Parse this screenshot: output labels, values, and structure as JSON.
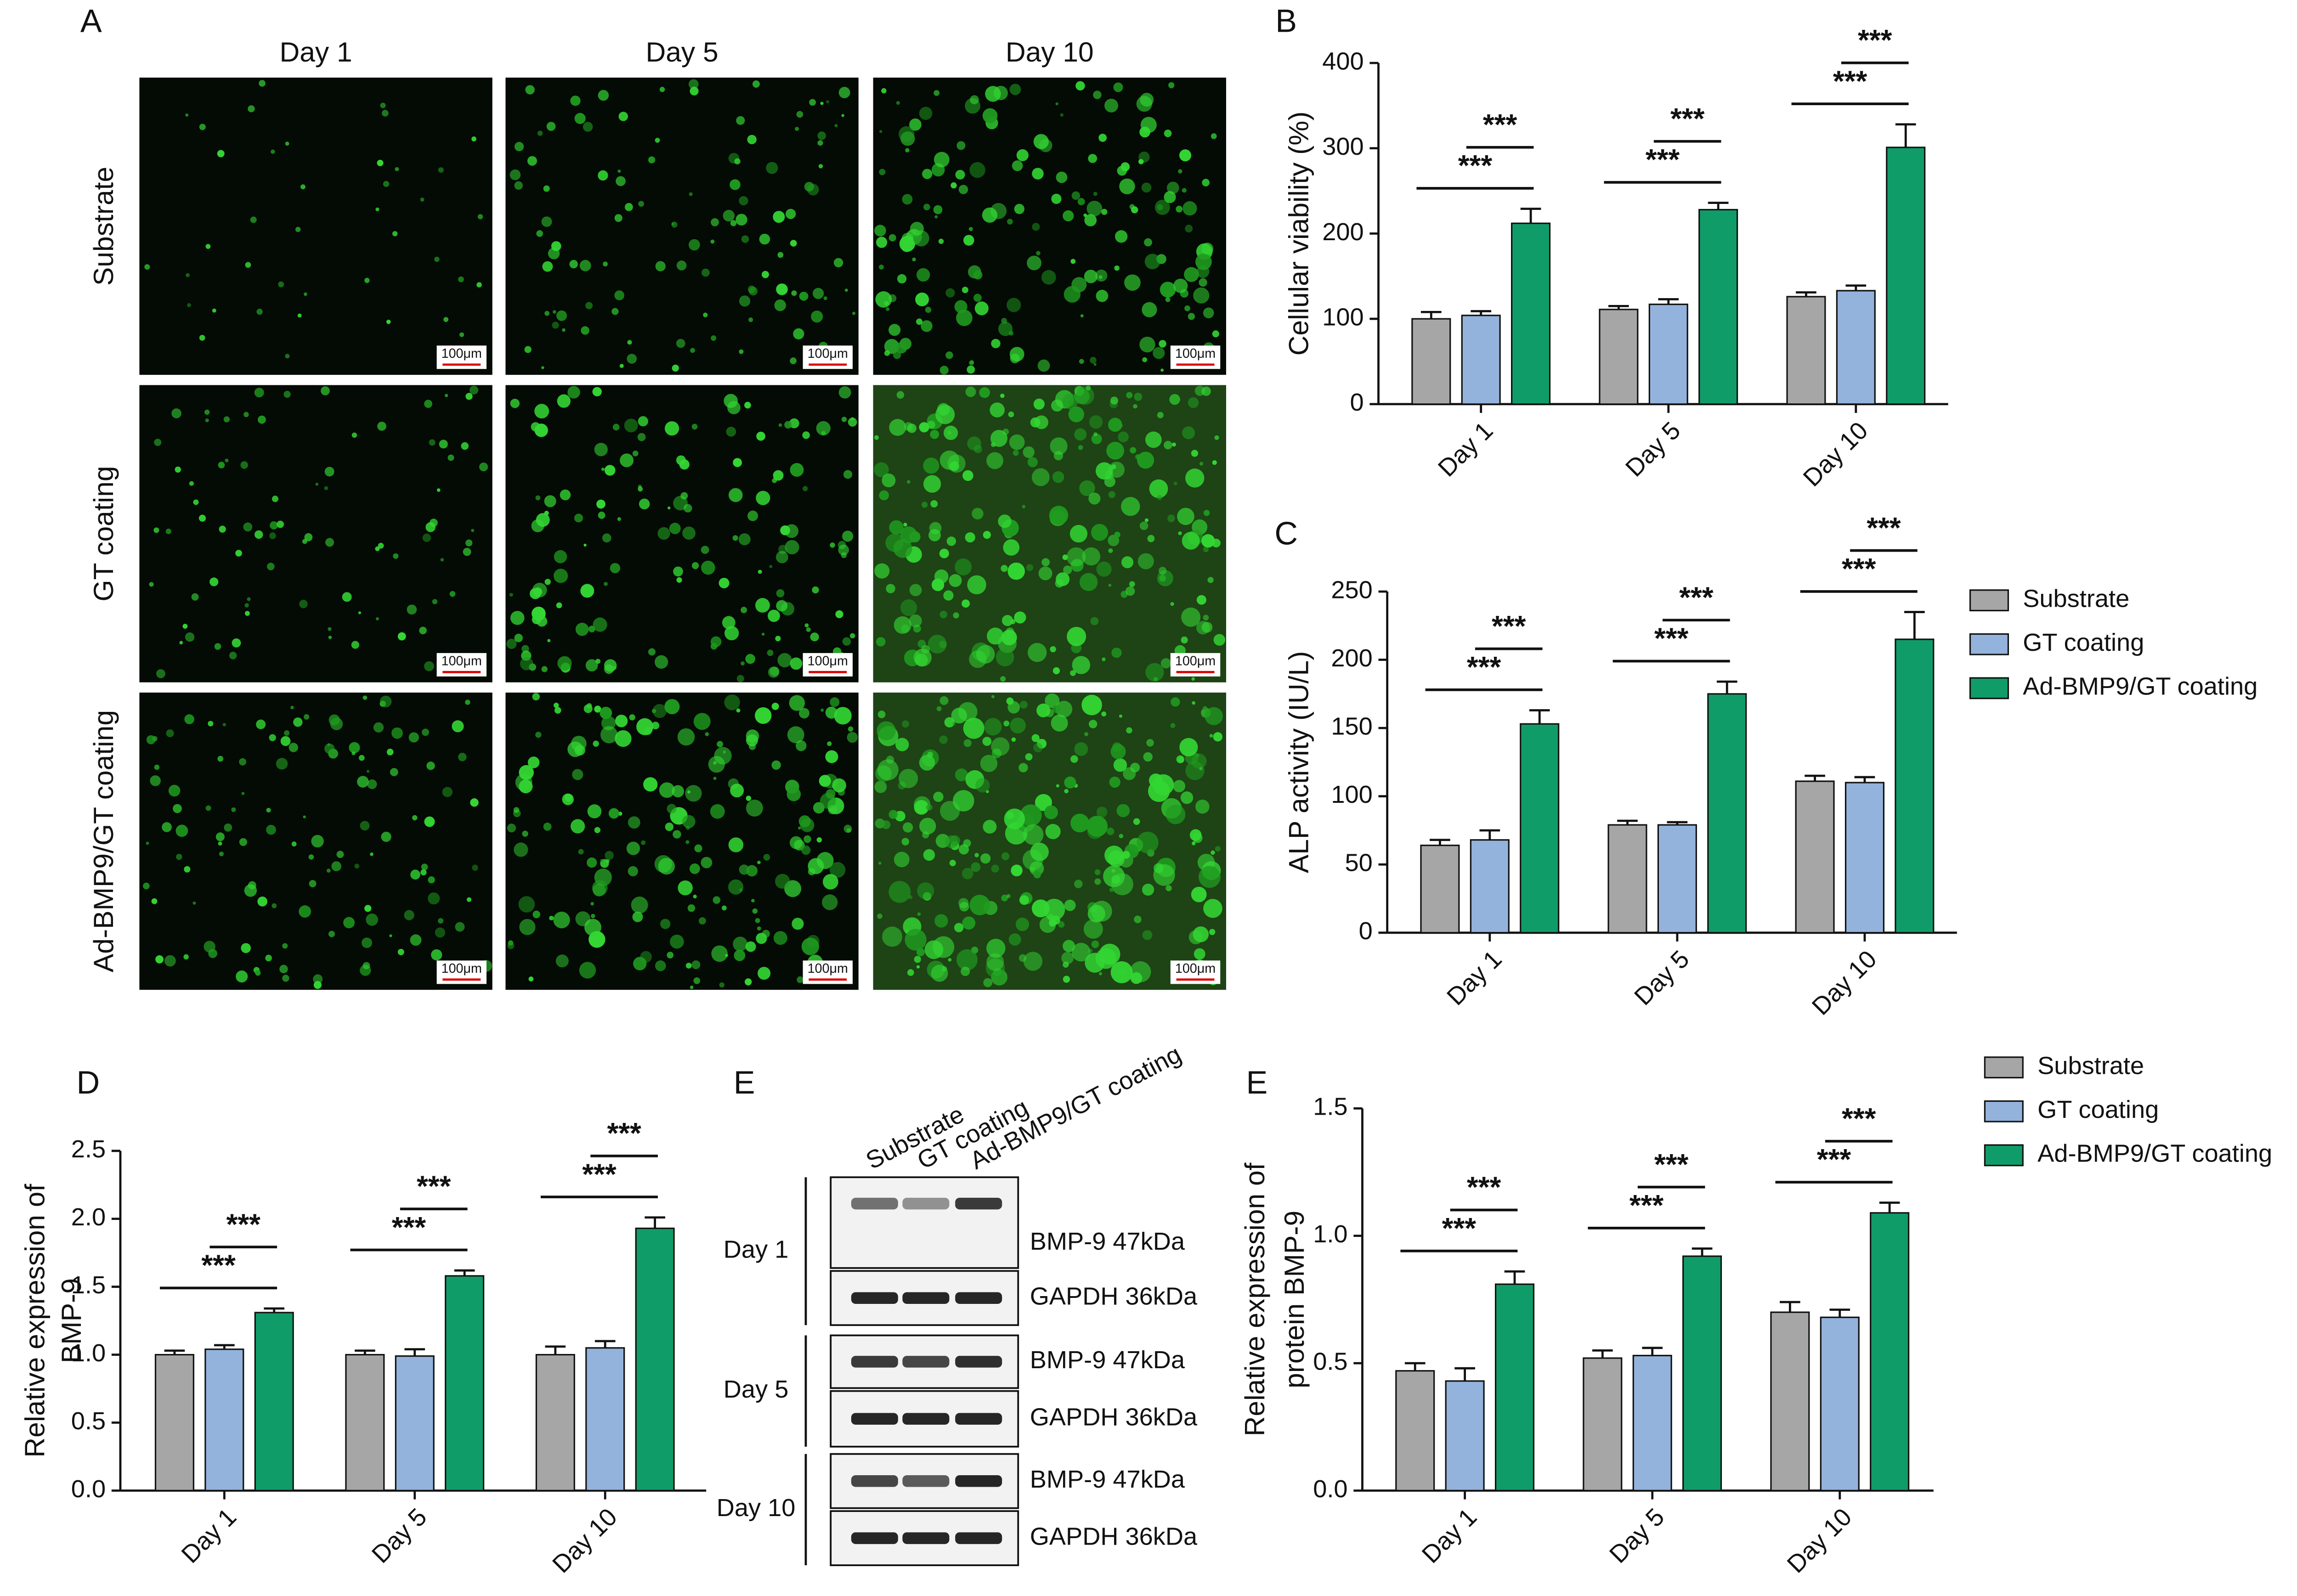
{
  "micrographs": {
    "panel": "A",
    "columns": [
      "Day 1",
      "Day 5",
      "Day 10"
    ],
    "rows": [
      "Substrate",
      "GT coating",
      "Ad-BMP9/GT coating"
    ],
    "scale_bar": "100μm"
  },
  "western_blot": {
    "panel": "E",
    "lanes": [
      "Substrate",
      "GT coating",
      "Ad-BMP9/GT coating"
    ],
    "groups": [
      "Day 1",
      "Day 5",
      "Day 10"
    ],
    "bands": [
      "BMP-9 47kDa",
      "GAPDH 36kDa"
    ]
  },
  "chart_data": [
    {
      "type": "bar",
      "panel": "B",
      "y_label": [
        "Cellular viability (%)"
      ],
      "categories": [
        "Day 1",
        "Day 5",
        "Day 10"
      ],
      "series": [
        {
          "name": "Substrate",
          "color": "#a6a6a6",
          "values": [
            100,
            111,
            126
          ],
          "errors": [
            8,
            4,
            5
          ]
        },
        {
          "name": "GT coating",
          "color": "#93b3dc",
          "values": [
            104,
            117,
            133
          ],
          "errors": [
            5,
            6,
            6
          ]
        },
        {
          "name": "Ad-BMP9/GT coating",
          "color": "#109c68",
          "values": [
            212,
            228,
            301
          ],
          "errors": [
            17,
            8,
            27
          ]
        }
      ],
      "ylim": [
        0,
        400
      ],
      "yticks": [
        0,
        100,
        200,
        300,
        400
      ],
      "annotations": [
        {
          "text": "***",
          "category": 0,
          "from": 0,
          "to": 2
        },
        {
          "text": "***",
          "category": 0,
          "from": 1,
          "to": 2
        },
        {
          "text": "***",
          "category": 1,
          "from": 0,
          "to": 2
        },
        {
          "text": "***",
          "category": 1,
          "from": 1,
          "to": 2
        },
        {
          "text": "***",
          "category": 2,
          "from": 0,
          "to": 2
        },
        {
          "text": "***",
          "category": 2,
          "from": 1,
          "to": 2
        }
      ]
    },
    {
      "type": "bar",
      "panel": "C",
      "y_label": [
        "ALP activity (IU/L)"
      ],
      "categories": [
        "Day 1",
        "Day 5",
        "Day 10"
      ],
      "legend": "right",
      "series": [
        {
          "name": "Substrate",
          "color": "#a6a6a6",
          "values": [
            64,
            79,
            111
          ],
          "errors": [
            4,
            3,
            4
          ]
        },
        {
          "name": "GT coating",
          "color": "#93b3dc",
          "values": [
            68,
            79,
            110
          ],
          "errors": [
            7,
            2,
            4
          ]
        },
        {
          "name": "Ad-BMP9/GT coating",
          "color": "#109c68",
          "values": [
            153,
            175,
            215
          ],
          "errors": [
            10,
            9,
            20
          ]
        }
      ],
      "ylim": [
        0,
        250
      ],
      "yticks": [
        0,
        50,
        100,
        150,
        200,
        250
      ],
      "annotations": [
        {
          "text": "***",
          "category": 0,
          "from": 0,
          "to": 2
        },
        {
          "text": "***",
          "category": 0,
          "from": 1,
          "to": 2
        },
        {
          "text": "***",
          "category": 1,
          "from": 0,
          "to": 2
        },
        {
          "text": "***",
          "category": 1,
          "from": 1,
          "to": 2
        },
        {
          "text": "***",
          "category": 2,
          "from": 0,
          "to": 2
        },
        {
          "text": "***",
          "category": 2,
          "from": 1,
          "to": 2
        }
      ]
    },
    {
      "type": "bar",
      "panel": "D",
      "y_label": [
        "Relative expression of",
        "BMP-9"
      ],
      "categories": [
        "Day 1",
        "Day 5",
        "Day 10"
      ],
      "series": [
        {
          "name": "Substrate",
          "color": "#a6a6a6",
          "values": [
            1.0,
            1.0,
            1.0
          ],
          "errors": [
            0.03,
            0.03,
            0.06
          ]
        },
        {
          "name": "GT coating",
          "color": "#93b3dc",
          "values": [
            1.04,
            0.99,
            1.05
          ],
          "errors": [
            0.03,
            0.05,
            0.05
          ]
        },
        {
          "name": "Ad-BMP9/GT coating",
          "color": "#109c68",
          "values": [
            1.31,
            1.58,
            1.93
          ],
          "errors": [
            0.03,
            0.04,
            0.08
          ]
        }
      ],
      "ylim": [
        0,
        2.5
      ],
      "yticks": [
        {
          "value": 0,
          "label": "0.0"
        },
        0.5,
        {
          "value": 1,
          "label": "1.0"
        },
        1.5,
        {
          "value": 2,
          "label": "2.0"
        },
        2.5
      ],
      "annotations": [
        {
          "text": "***",
          "category": 0,
          "from": 0,
          "to": 2
        },
        {
          "text": "***",
          "category": 0,
          "from": 1,
          "to": 2
        },
        {
          "text": "***",
          "category": 1,
          "from": 0,
          "to": 2
        },
        {
          "text": "***",
          "category": 1,
          "from": 1,
          "to": 2
        },
        {
          "text": "***",
          "category": 2,
          "from": 0,
          "to": 2
        },
        {
          "text": "***",
          "category": 2,
          "from": 1,
          "to": 2
        }
      ]
    },
    {
      "type": "bar",
      "panel": "E",
      "y_label": [
        "Relative expression of",
        "protein BMP-9"
      ],
      "categories": [
        "Day 1",
        "Day 5",
        "Day 10"
      ],
      "legend": "right",
      "series": [
        {
          "name": "Substrate",
          "color": "#a6a6a6",
          "values": [
            0.47,
            0.52,
            0.7
          ],
          "errors": [
            0.03,
            0.03,
            0.04
          ]
        },
        {
          "name": "GT coating",
          "color": "#93b3dc",
          "values": [
            0.43,
            0.53,
            0.68
          ],
          "errors": [
            0.05,
            0.03,
            0.03
          ]
        },
        {
          "name": "Ad-BMP9/GT coating",
          "color": "#109c68",
          "values": [
            0.81,
            0.92,
            1.09
          ],
          "errors": [
            0.05,
            0.03,
            0.04
          ]
        }
      ],
      "ylim": [
        0,
        1.5
      ],
      "yticks": [
        {
          "value": 0,
          "label": "0.0"
        },
        0.5,
        {
          "value": 1,
          "label": "1.0"
        },
        1.5
      ],
      "annotations": [
        {
          "text": "***",
          "category": 0,
          "from": 0,
          "to": 2
        },
        {
          "text": "***",
          "category": 0,
          "from": 1,
          "to": 2
        },
        {
          "text": "***",
          "category": 1,
          "from": 0,
          "to": 2
        },
        {
          "text": "***",
          "category": 1,
          "from": 1,
          "to": 2
        },
        {
          "text": "***",
          "category": 2,
          "from": 0,
          "to": 2
        },
        {
          "text": "***",
          "category": 2,
          "from": 1,
          "to": 2
        }
      ]
    }
  ]
}
